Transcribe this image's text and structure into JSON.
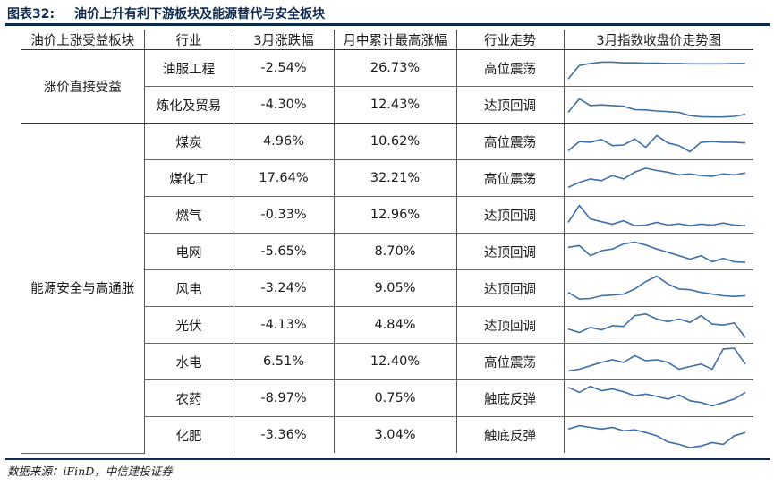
{
  "figure": {
    "number": "图表32:",
    "title": "油价上升有利下游板块及能源替代与安全板块"
  },
  "table": {
    "headers": [
      "油价上涨受益板块",
      "行业",
      "3月涨跌幅",
      "月中累计最高涨幅",
      "行业走势",
      "3月指数收盘价走势图"
    ],
    "groups": [
      {
        "name": "涨价直接受益",
        "rows": 2
      },
      {
        "name": "能源安全与高通胀",
        "rows": 9
      }
    ],
    "rows": [
      {
        "industry": "油服工程",
        "march_change": "-2.54%",
        "peak_change": "26.73%",
        "trend": "高位震荡",
        "spark": [
          10,
          50,
          56,
          60,
          60,
          58,
          58,
          57,
          57,
          56,
          56,
          55,
          55,
          55,
          55,
          56,
          56
        ]
      },
      {
        "industry": "炼化及贸易",
        "march_change": "-4.30%",
        "peak_change": "12.43%",
        "trend": "达顶回调",
        "spark": [
          20,
          60,
          40,
          42,
          40,
          38,
          28,
          27,
          24,
          22,
          20,
          10,
          7,
          6,
          6,
          8,
          14
        ]
      },
      {
        "industry": "煤炭",
        "march_change": "4.96%",
        "peak_change": "10.62%",
        "trend": "高位震荡",
        "spark": [
          15,
          42,
          40,
          48,
          30,
          32,
          50,
          25,
          60,
          38,
          30,
          12,
          40,
          42,
          40,
          40,
          38
        ]
      },
      {
        "industry": "煤化工",
        "march_change": "17.64%",
        "peak_change": "32.21%",
        "trend": "高位震荡",
        "spark": [
          15,
          30,
          40,
          35,
          50,
          40,
          60,
          72,
          65,
          60,
          52,
          55,
          50,
          48,
          55,
          52,
          58
        ]
      },
      {
        "industry": "燃气",
        "march_change": "-0.33%",
        "peak_change": "12.96%",
        "trend": "达顶回调",
        "spark": [
          20,
          70,
          30,
          22,
          15,
          25,
          10,
          12,
          20,
          12,
          16,
          10,
          15,
          12,
          18,
          12,
          10
        ]
      },
      {
        "industry": "电网",
        "march_change": "-5.65%",
        "peak_change": "8.70%",
        "trend": "达顶回调",
        "spark": [
          55,
          60,
          30,
          45,
          50,
          65,
          70,
          62,
          50,
          40,
          30,
          20,
          30,
          12,
          22,
          12,
          10
        ]
      },
      {
        "industry": "风电",
        "march_change": "-3.24%",
        "peak_change": "9.05%",
        "trend": "达顶回调",
        "spark": [
          30,
          10,
          12,
          20,
          22,
          25,
          40,
          62,
          78,
          55,
          40,
          38,
          30,
          25,
          20,
          18,
          20
        ]
      },
      {
        "industry": "光伏",
        "march_change": "-4.13%",
        "peak_change": "4.84%",
        "trend": "达顶回调",
        "spark": [
          30,
          20,
          35,
          28,
          40,
          38,
          70,
          75,
          60,
          52,
          60,
          50,
          70,
          45,
          42,
          48,
          5
        ]
      },
      {
        "industry": "水电",
        "march_change": "6.51%",
        "peak_change": "12.40%",
        "trend": "高位震荡",
        "spark": [
          15,
          20,
          30,
          40,
          48,
          40,
          60,
          45,
          48,
          40,
          20,
          28,
          35,
          20,
          80,
          82,
          35
        ]
      },
      {
        "industry": "农药",
        "march_change": "-8.97%",
        "peak_change": "0.75%",
        "trend": "触底反弹",
        "spark": [
          75,
          60,
          78,
          65,
          70,
          62,
          50,
          55,
          48,
          40,
          52,
          35,
          30,
          20,
          30,
          40,
          60
        ]
      },
      {
        "industry": "化肥",
        "march_change": "-3.36%",
        "peak_change": "3.04%",
        "trend": "触底反弹",
        "spark": [
          60,
          70,
          65,
          60,
          65,
          55,
          58,
          50,
          40,
          22,
          15,
          5,
          10,
          20,
          15,
          40,
          50
        ]
      }
    ],
    "spark_color": "#3d6fa8"
  },
  "source": "数据来源：iFinD，中信建投证券"
}
